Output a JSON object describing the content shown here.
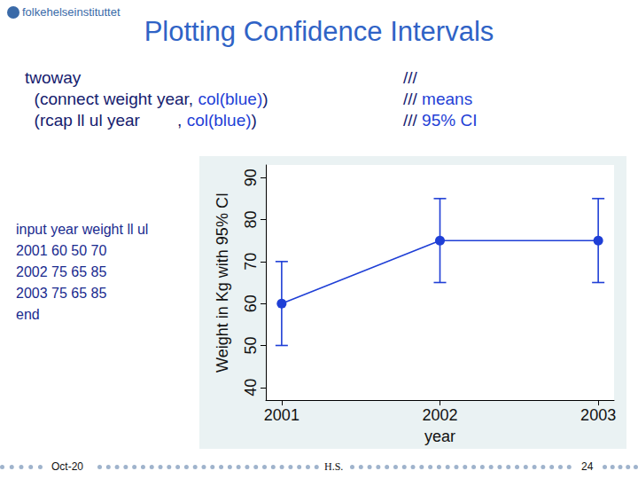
{
  "slide": {
    "logo": "folkehelseinstituttet",
    "title": "Plotting Confidence Intervals",
    "code": [
      [
        "twoway"
      ],
      [
        "  (connect weight year, ",
        "col(blue)",
        ")"
      ],
      [
        "  (rcap ll ul year        , ",
        "col(blue)",
        ")"
      ]
    ],
    "comments": [
      [
        "///"
      ],
      [
        "///",
        " means"
      ],
      [
        "///",
        " 95% CI"
      ]
    ],
    "input": [
      "input year weight ll ul",
      "2001 60 50 70",
      "2002 75 65 85",
      "2003 75 65 85",
      "end"
    ],
    "footer": {
      "date": "Oct-20",
      "author": "H.S.",
      "page": "24"
    }
  },
  "chart_data": {
    "type": "line",
    "x": [
      2001,
      2002,
      2003
    ],
    "values": [
      60,
      75,
      75
    ],
    "ci_low": [
      50,
      65,
      65
    ],
    "ci_high": [
      70,
      85,
      85
    ],
    "color": "#1f3fd6",
    "marker": "circle",
    "line_style": "solid",
    "xlabel": "year",
    "ylabel": "Weight in Kg with 95% CI",
    "xlim": [
      2000.9,
      2003.1
    ],
    "xticks": [
      2001,
      2002,
      2003
    ],
    "ylim": [
      37,
      93
    ],
    "yticks": [
      40,
      50,
      60,
      70,
      80,
      90
    ],
    "grid": false
  }
}
